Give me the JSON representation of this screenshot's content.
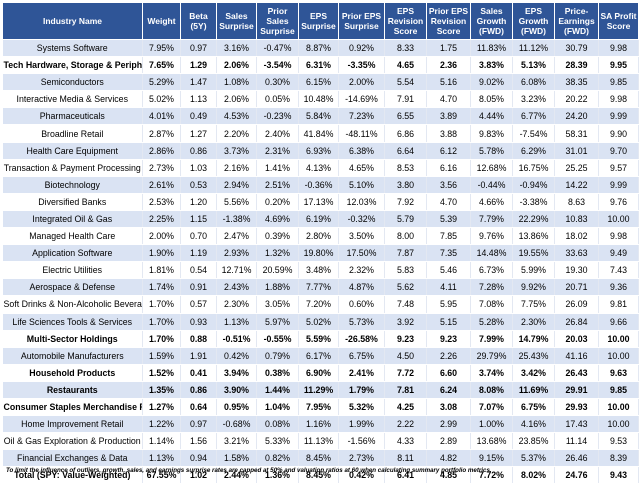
{
  "columns": [
    "Industry Name",
    "Weight",
    "Beta (5Y)",
    "Sales Surprise",
    "Prior Sales Surprise",
    "EPS Surprise",
    "Prior EPS Surprise",
    "EPS Revision Score",
    "Prior EPS Revision Score",
    "Sales Growth (FWD)",
    "EPS Growth (FWD)",
    "Price-Earnings (FWD)",
    "SA Profit Score"
  ],
  "rows": [
    {
      "cells": [
        "Systems Software",
        "7.95%",
        "0.97",
        "3.16%",
        "-0.47%",
        "8.87%",
        "0.92%",
        "8.33",
        "1.75",
        "11.83%",
        "11.12%",
        "30.79",
        "9.98"
      ],
      "bold": false
    },
    {
      "cells": [
        "Tech Hardware, Storage & Peripherals",
        "7.65%",
        "1.29",
        "2.06%",
        "-3.54%",
        "6.31%",
        "-3.35%",
        "4.65",
        "2.36",
        "3.83%",
        "5.13%",
        "28.39",
        "9.95"
      ],
      "bold": true
    },
    {
      "cells": [
        "Semiconductors",
        "5.29%",
        "1.47",
        "1.08%",
        "0.30%",
        "6.15%",
        "2.00%",
        "5.54",
        "5.16",
        "9.02%",
        "6.08%",
        "38.35",
        "9.85"
      ],
      "bold": false
    },
    {
      "cells": [
        "Interactive Media & Services",
        "5.02%",
        "1.13",
        "2.06%",
        "0.05%",
        "10.48%",
        "-14.69%",
        "7.91",
        "4.70",
        "8.05%",
        "3.23%",
        "20.22",
        "9.98"
      ],
      "bold": false
    },
    {
      "cells": [
        "Pharmaceuticals",
        "4.01%",
        "0.49",
        "4.53%",
        "-0.23%",
        "5.84%",
        "7.23%",
        "6.55",
        "3.89",
        "4.44%",
        "6.77%",
        "24.20",
        "9.99"
      ],
      "bold": false
    },
    {
      "cells": [
        "Broadline Retail",
        "2.87%",
        "1.27",
        "2.20%",
        "2.40%",
        "41.84%",
        "-48.11%",
        "6.86",
        "3.88",
        "9.83%",
        "-7.54%",
        "58.31",
        "9.90"
      ],
      "bold": false
    },
    {
      "cells": [
        "Health Care Equipment",
        "2.86%",
        "0.86",
        "3.73%",
        "2.31%",
        "6.93%",
        "6.38%",
        "6.64",
        "6.12",
        "5.78%",
        "6.29%",
        "31.01",
        "9.70"
      ],
      "bold": false
    },
    {
      "cells": [
        "Transaction & Payment Processing",
        "2.73%",
        "1.03",
        "2.16%",
        "1.41%",
        "4.13%",
        "4.65%",
        "8.53",
        "6.16",
        "12.68%",
        "16.75%",
        "25.25",
        "9.57"
      ],
      "bold": false
    },
    {
      "cells": [
        "Biotechnology",
        "2.61%",
        "0.53",
        "2.94%",
        "2.51%",
        "-0.36%",
        "5.10%",
        "3.80",
        "3.56",
        "-0.44%",
        "-0.94%",
        "14.22",
        "9.99"
      ],
      "bold": false
    },
    {
      "cells": [
        "Diversified Banks",
        "2.53%",
        "1.20",
        "5.56%",
        "0.20%",
        "17.13%",
        "12.03%",
        "7.92",
        "4.70",
        "4.66%",
        "-3.38%",
        "8.63",
        "9.76"
      ],
      "bold": false
    },
    {
      "cells": [
        "Integrated Oil & Gas",
        "2.25%",
        "1.15",
        "-1.38%",
        "4.69%",
        "6.19%",
        "-0.32%",
        "5.79",
        "5.39",
        "7.79%",
        "22.29%",
        "10.83",
        "10.00"
      ],
      "bold": false
    },
    {
      "cells": [
        "Managed Health Care",
        "2.00%",
        "0.70",
        "2.47%",
        "0.39%",
        "2.80%",
        "3.50%",
        "8.00",
        "7.85",
        "9.76%",
        "13.86%",
        "18.02",
        "9.98"
      ],
      "bold": false
    },
    {
      "cells": [
        "Application Software",
        "1.90%",
        "1.19",
        "2.93%",
        "1.32%",
        "19.80%",
        "17.50%",
        "7.87",
        "7.35",
        "14.48%",
        "19.55%",
        "33.63",
        "9.49"
      ],
      "bold": false
    },
    {
      "cells": [
        "Electric Utilities",
        "1.81%",
        "0.54",
        "12.71%",
        "20.59%",
        "3.48%",
        "2.32%",
        "5.83",
        "5.46",
        "6.73%",
        "5.99%",
        "19.30",
        "7.43"
      ],
      "bold": false
    },
    {
      "cells": [
        "Aerospace & Defense",
        "1.74%",
        "0.91",
        "2.43%",
        "1.88%",
        "7.77%",
        "4.87%",
        "5.62",
        "4.11",
        "7.28%",
        "9.92%",
        "20.71",
        "9.36"
      ],
      "bold": false
    },
    {
      "cells": [
        "Soft Drinks & Non-Alcoholic Beverages",
        "1.70%",
        "0.57",
        "2.30%",
        "3.05%",
        "7.20%",
        "0.60%",
        "7.48",
        "5.95",
        "7.08%",
        "7.75%",
        "26.09",
        "9.81"
      ],
      "bold": false
    },
    {
      "cells": [
        "Life Sciences Tools & Services",
        "1.70%",
        "0.93",
        "1.13%",
        "5.97%",
        "5.02%",
        "5.73%",
        "3.92",
        "5.15",
        "5.28%",
        "2.30%",
        "26.84",
        "9.66"
      ],
      "bold": false
    },
    {
      "cells": [
        "Multi-Sector Holdings",
        "1.70%",
        "0.88",
        "-0.51%",
        "-0.55%",
        "5.59%",
        "-26.58%",
        "9.23",
        "9.23",
        "7.99%",
        "14.79%",
        "20.03",
        "10.00"
      ],
      "bold": true
    },
    {
      "cells": [
        "Automobile Manufacturers",
        "1.59%",
        "1.91",
        "0.42%",
        "0.79%",
        "6.17%",
        "6.75%",
        "4.50",
        "2.26",
        "29.79%",
        "25.43%",
        "41.16",
        "10.00"
      ],
      "bold": false
    },
    {
      "cells": [
        "Household Products",
        "1.52%",
        "0.41",
        "3.94%",
        "0.38%",
        "6.90%",
        "2.41%",
        "7.72",
        "6.60",
        "3.74%",
        "3.42%",
        "26.43",
        "9.63"
      ],
      "bold": true
    },
    {
      "cells": [
        "Restaurants",
        "1.35%",
        "0.86",
        "3.90%",
        "1.44%",
        "11.29%",
        "1.79%",
        "7.81",
        "6.24",
        "8.08%",
        "11.69%",
        "29.91",
        "9.85"
      ],
      "bold": true
    },
    {
      "cells": [
        "Consumer Staples Merchandise Retail",
        "1.27%",
        "0.64",
        "0.95%",
        "1.04%",
        "7.95%",
        "5.32%",
        "4.25",
        "3.08",
        "7.07%",
        "6.75%",
        "29.93",
        "10.00"
      ],
      "bold": true
    },
    {
      "cells": [
        "Home Improvement Retail",
        "1.22%",
        "0.97",
        "-0.68%",
        "0.08%",
        "1.16%",
        "1.99%",
        "2.22",
        "2.99",
        "1.00%",
        "4.16%",
        "17.43",
        "10.00"
      ],
      "bold": false
    },
    {
      "cells": [
        "Oil & Gas Exploration & Production",
        "1.14%",
        "1.56",
        "3.21%",
        "5.33%",
        "11.13%",
        "-1.56%",
        "4.33",
        "2.89",
        "13.68%",
        "23.85%",
        "11.14",
        "9.53"
      ],
      "bold": false
    },
    {
      "cells": [
        "Financial Exchanges & Data",
        "1.13%",
        "0.94",
        "1.58%",
        "0.82%",
        "8.45%",
        "2.73%",
        "8.11",
        "4.82",
        "9.15%",
        "5.37%",
        "26.46",
        "8.39"
      ],
      "bold": false
    },
    {
      "cells": [
        "Total (SPY: Value-Weighted)",
        "67.55%",
        "1.02",
        "2.44%",
        "1.36%",
        "8.45%",
        "0.42%",
        "6.41",
        "4.85",
        "7.72%",
        "8.02%",
        "24.76",
        "9.43"
      ],
      "bold": true
    }
  ],
  "footnote": "To limit the influence of outliers, growth, sales, and earnings surprise rates are capped at 50% and valuation ratios at 60 when calculating summary portfolio metrics."
}
